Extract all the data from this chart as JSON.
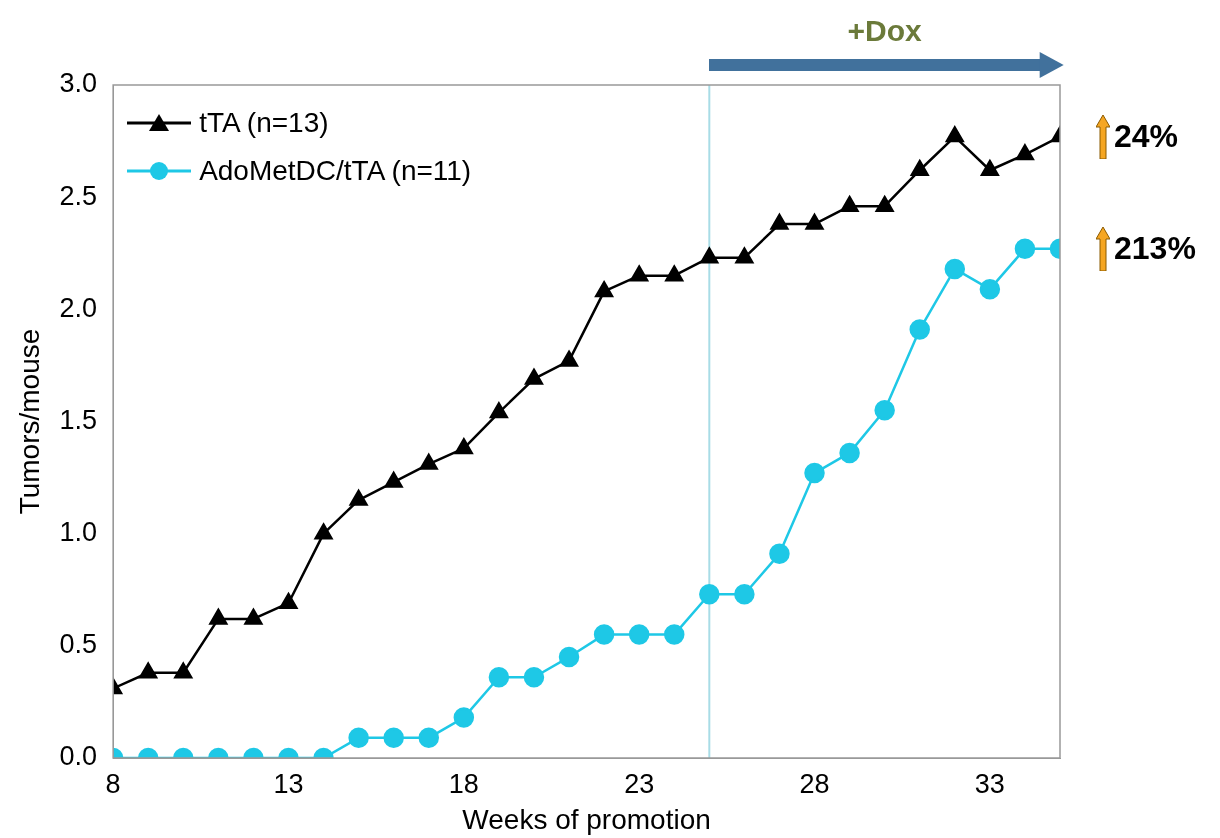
{
  "chart_data": {
    "type": "line",
    "xlabel": "Weeks of promotion",
    "ylabel": "Tumors/mouse",
    "x": [
      8,
      9,
      10,
      11,
      12,
      13,
      14,
      15,
      16,
      17,
      18,
      19,
      20,
      21,
      22,
      23,
      24,
      25,
      26,
      27,
      28,
      29,
      30,
      31,
      32,
      33,
      34,
      35
    ],
    "series": [
      {
        "name": "tTA (n=13)",
        "color": "#000000",
        "marker": "triangle",
        "values": [
          0.31,
          0.38,
          0.38,
          0.62,
          0.62,
          0.69,
          1.0,
          1.15,
          1.23,
          1.31,
          1.38,
          1.54,
          1.69,
          1.77,
          2.08,
          2.15,
          2.15,
          2.23,
          2.23,
          2.38,
          2.38,
          2.46,
          2.46,
          2.62,
          2.77,
          2.62,
          2.69,
          2.77
        ]
      },
      {
        "name": "AdoMetDC/tTA (n=11)",
        "color": "#1ec8e6",
        "marker": "circle",
        "values": [
          0,
          0,
          0,
          0,
          0,
          0,
          0,
          0.09,
          0.09,
          0.09,
          0.18,
          0.36,
          0.36,
          0.45,
          0.55,
          0.55,
          0.55,
          0.73,
          0.73,
          0.91,
          1.27,
          1.36,
          1.55,
          1.91,
          2.18,
          2.09,
          2.27,
          2.27
        ]
      }
    ],
    "xlim": [
      8,
      35
    ],
    "xticks": [
      8,
      13,
      18,
      23,
      28,
      33
    ],
    "ylim": [
      0,
      3
    ],
    "yticks": [
      {
        "value": 0,
        "label": "0.0"
      },
      {
        "value": 0.5,
        "label": "0.5"
      },
      {
        "value": 1,
        "label": "1.0"
      },
      {
        "value": 1.5,
        "label": "1.5"
      },
      {
        "value": 2,
        "label": "2.0"
      },
      {
        "value": 2.5,
        "label": "2.5"
      },
      {
        "value": 3,
        "label": "3.0"
      }
    ],
    "ref_lines": [
      {
        "axis": "x",
        "value": 25,
        "color": "#a8dce6"
      }
    ],
    "annotations": [
      "+Dox",
      {
        "text": "24%",
        "x": 35,
        "y": 2.77
      },
      {
        "text": "213%",
        "x": 35,
        "y": 2.27
      }
    ],
    "grid": false,
    "legend": "top left",
    "line_style": "solid"
  }
}
